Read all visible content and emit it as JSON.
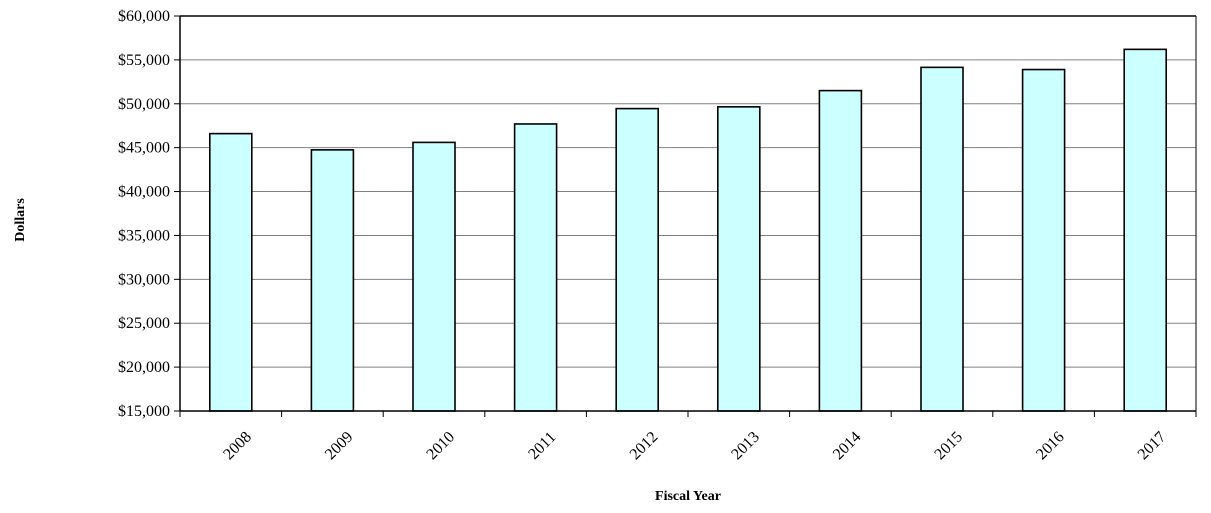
{
  "chart_data": {
    "type": "bar",
    "title": "",
    "xlabel": "Fiscal Year",
    "ylabel": "Dollars",
    "categories": [
      "2008",
      "2009",
      "2010",
      "2011",
      "2012",
      "2013",
      "2014",
      "2015",
      "2016",
      "2017"
    ],
    "values": [
      46600,
      44750,
      45600,
      47700,
      49450,
      49650,
      51500,
      54150,
      53900,
      56200
    ],
    "ylim": [
      15000,
      60000
    ],
    "yticks": [
      15000,
      20000,
      25000,
      30000,
      35000,
      40000,
      45000,
      50000,
      55000,
      60000
    ],
    "ytick_labels": [
      "$15,000",
      "$20,000",
      "$25,000",
      "$30,000",
      "$35,000",
      "$40,000",
      "$45,000",
      "$50,000",
      "$55,000",
      "$60,000"
    ],
    "grid": true,
    "legend": "none",
    "bar_color": "#ccffff",
    "bar_edge_color": "#000000",
    "grid_color": "#808080"
  }
}
